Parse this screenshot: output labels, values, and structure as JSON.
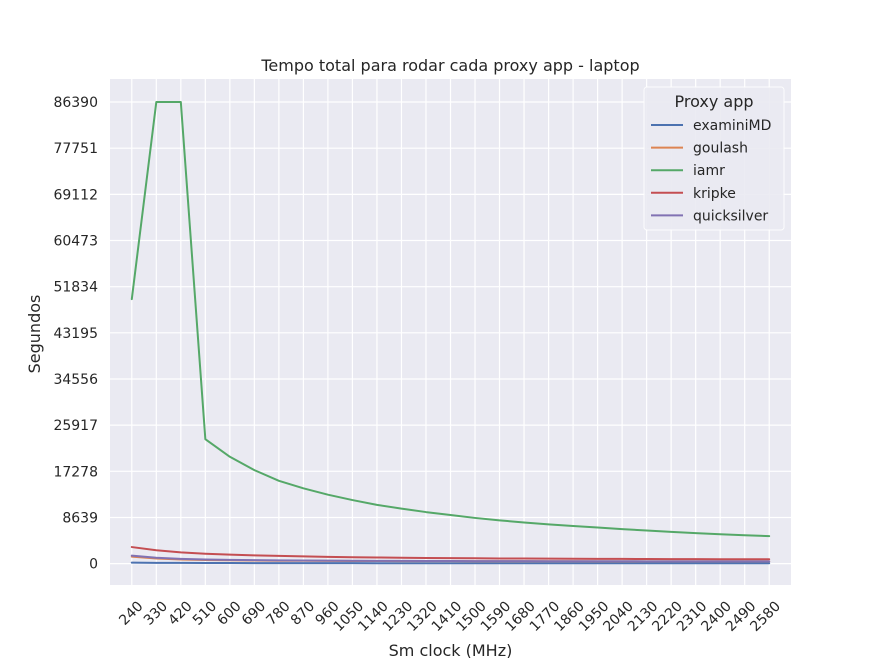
{
  "chart_data": {
    "type": "line",
    "title": "Tempo total para rodar cada proxy app - laptop",
    "xlabel": "Sm clock (MHz)",
    "ylabel": "Segundos",
    "x": [
      240,
      330,
      420,
      510,
      600,
      690,
      780,
      870,
      960,
      1050,
      1140,
      1230,
      1320,
      1410,
      1500,
      1590,
      1680,
      1770,
      1860,
      1950,
      2040,
      2130,
      2220,
      2310,
      2400,
      2490,
      2580
    ],
    "x_ticks": [
      "240",
      "330",
      "420",
      "510",
      "600",
      "690",
      "780",
      "870",
      "960",
      "1050",
      "1140",
      "1230",
      "1320",
      "1410",
      "1500",
      "1590",
      "1680",
      "1770",
      "1860",
      "1950",
      "2040",
      "2130",
      "2220",
      "2310",
      "2400",
      "2490",
      "2580"
    ],
    "y_ticks": [
      "0",
      "8639",
      "17278",
      "25917",
      "34556",
      "43195",
      "51834",
      "60473",
      "69112",
      "77751",
      "86390"
    ],
    "ylim": [
      -4000,
      90700
    ],
    "xlim": [
      160,
      2660
    ],
    "grid": true,
    "legend": {
      "title": "Proxy app",
      "placement": "top-right"
    },
    "series": [
      {
        "name": "examiniMD",
        "color": "#4c72b0",
        "values": [
          180,
          150,
          130,
          120,
          110,
          100,
          95,
          90,
          88,
          85,
          82,
          80,
          78,
          76,
          75,
          74,
          73,
          72,
          71,
          70,
          70,
          69,
          69,
          68,
          68,
          67,
          67
        ]
      },
      {
        "name": "goulash",
        "color": "#dd8452",
        "values": [
          1300,
          950,
          780,
          680,
          620,
          580,
          550,
          530,
          510,
          495,
          485,
          475,
          465,
          458,
          452,
          446,
          441,
          437,
          433,
          430,
          427,
          424,
          421,
          419,
          417,
          415,
          413
        ]
      },
      {
        "name": "iamr",
        "color": "#55a868",
        "values": [
          49500,
          86390,
          86390,
          23300,
          20000,
          17500,
          15500,
          14100,
          12900,
          11900,
          11000,
          10300,
          9650,
          9100,
          8550,
          8100,
          7700,
          7350,
          7050,
          6750,
          6450,
          6200,
          5950,
          5700,
          5500,
          5300,
          5150
        ]
      },
      {
        "name": "kripke",
        "color": "#c44e52",
        "values": [
          3100,
          2500,
          2100,
          1850,
          1680,
          1550,
          1440,
          1350,
          1270,
          1200,
          1150,
          1100,
          1060,
          1030,
          1000,
          970,
          950,
          930,
          910,
          895,
          880,
          865,
          852,
          840,
          830,
          820,
          810
        ]
      },
      {
        "name": "quicksilver",
        "color": "#8172b3",
        "values": [
          1500,
          1100,
          900,
          780,
          700,
          650,
          610,
          580,
          555,
          535,
          518,
          504,
          492,
          482,
          473,
          465,
          458,
          452,
          446,
          441,
          436,
          432,
          428,
          424,
          421,
          418,
          415
        ]
      }
    ]
  }
}
